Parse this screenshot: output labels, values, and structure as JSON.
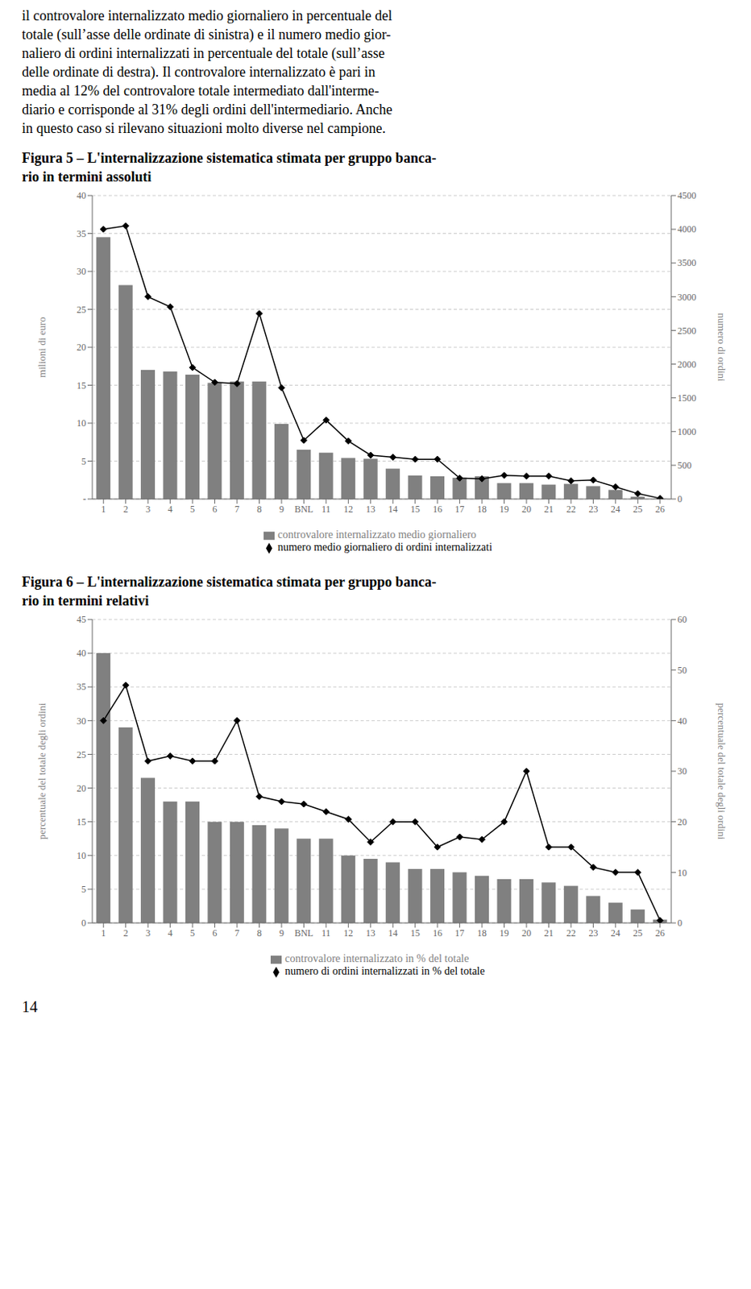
{
  "text": [
    "il controvalore internalizzato medio giornaliero in percentuale del",
    "totale (sull’asse delle ordinate di sinistra) e il numero medio gior-",
    "naliero di ordini internalizzati in percentuale del totale (sull’asse",
    "delle ordinate di destra). Il controvalore internalizzato è pari in",
    "media al 12% del controvalore totale intermediato dall'interme-",
    "diario e corrisponde al 31% degli ordini dell'intermediario. Anche",
    "in questo caso si rilevano situazioni molto diverse nel campione."
  ],
  "footer": "14",
  "chart_data": [
    {
      "type": "bar",
      "title": "Figura 5 – L'internalizzazione sistematica stimata per gruppo banca-\nrio in termini assoluti",
      "categories": [
        "1",
        "2",
        "3",
        "4",
        "5",
        "6",
        "7",
        "8",
        "9",
        "BNL",
        "11",
        "12",
        "13",
        "14",
        "15",
        "16",
        "17",
        "18",
        "19",
        "20",
        "21",
        "22",
        "23",
        "24",
        "25",
        "26"
      ],
      "series": [
        {
          "name": "controvalore internalizzato medio giornaliero",
          "type": "bar",
          "color": "#808080",
          "values": [
            34.5,
            28.2,
            17.0,
            16.8,
            16.4,
            15.3,
            15.5,
            15.5,
            9.9,
            6.5,
            6.1,
            5.4,
            5.3,
            4.0,
            3.1,
            3.0,
            2.8,
            3.0,
            2.1,
            2.1,
            1.9,
            2.0,
            1.7,
            1.2,
            0.3,
            0.05
          ]
        },
        {
          "name": "numero medio giornaliero di ordini internalizzati",
          "type": "line",
          "axis": "y2",
          "color": "#000000",
          "marker": "diamond",
          "values": [
            4000,
            4050,
            3000,
            2850,
            1950,
            1730,
            1710,
            2750,
            1650,
            870,
            1170,
            860,
            650,
            620,
            590,
            590,
            310,
            300,
            350,
            340,
            340,
            270,
            280,
            180,
            80,
            10
          ]
        }
      ],
      "ylim": [
        0,
        40
      ],
      "yticks": [
        {
          "value": 0,
          "label": "-"
        },
        5,
        10,
        15,
        20,
        25,
        30,
        35,
        40
      ],
      "y2lim": [
        0,
        4500
      ],
      "y2ticks": [
        0,
        500,
        1000,
        1500,
        2000,
        2500,
        3000,
        3500,
        4000,
        4500
      ],
      "ylabel": "milioni di euro",
      "y2label": "numero di ordini",
      "grid": true,
      "legend": "bottom"
    },
    {
      "type": "bar",
      "title": "Figura 6 – L'internalizzazione sistematica stimata per gruppo banca-\nrio in termini relativi",
      "categories": [
        "1",
        "2",
        "3",
        "4",
        "5",
        "6",
        "7",
        "8",
        "9",
        "BNL",
        "11",
        "12",
        "13",
        "14",
        "15",
        "16",
        "17",
        "18",
        "19",
        "20",
        "21",
        "22",
        "23",
        "24",
        "25",
        "26"
      ],
      "series": [
        {
          "name": "controvalore internalizzato in % del totale",
          "type": "bar",
          "color": "#808080",
          "values": [
            40.0,
            29.0,
            21.5,
            18.0,
            18.0,
            15.0,
            15.0,
            14.5,
            14.0,
            12.5,
            12.5,
            10.0,
            9.5,
            9.0,
            8.0,
            8.0,
            7.5,
            7.0,
            6.5,
            6.5,
            6.0,
            5.5,
            4.0,
            3.0,
            2.0,
            0.5
          ]
        },
        {
          "name": "numero di ordini internalizzati in % del totale",
          "type": "line",
          "axis": "y2",
          "color": "#000000",
          "marker": "diamond",
          "values": [
            40.0,
            47.0,
            32.0,
            33.0,
            32.0,
            32.0,
            40.0,
            25.0,
            24.0,
            23.5,
            22.0,
            20.5,
            16.0,
            20.0,
            20.0,
            15.0,
            17.0,
            16.5,
            20.0,
            30.0,
            15.0,
            15.0,
            11.0,
            10.0,
            10.0,
            0.5
          ]
        }
      ],
      "ylim": [
        0,
        45
      ],
      "yticks": [
        0,
        5,
        10,
        15,
        20,
        25,
        30,
        35,
        40,
        45
      ],
      "y2lim": [
        0,
        60
      ],
      "y2ticks": [
        0,
        10,
        20,
        30,
        40,
        50,
        60
      ],
      "ylabel": "percentuale  del totale degli ordini",
      "y2label": "percentuale del totale degli ordini",
      "grid": true,
      "legend": "bottom"
    }
  ]
}
